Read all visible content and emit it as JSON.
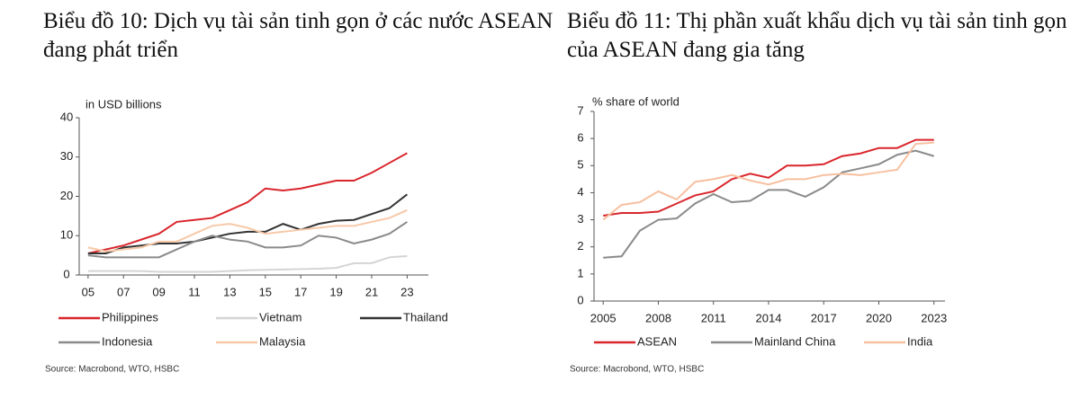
{
  "chart_data": [
    {
      "type": "line",
      "title": "Biểu đồ 10: Dịch vụ tài sản tinh gọn ở các nước ASEAN đang phát triển",
      "y_label": "in USD billions",
      "source": "Source: Macrobond, WTO, HSBC",
      "x": [
        2005,
        2006,
        2007,
        2008,
        2009,
        2010,
        2011,
        2012,
        2013,
        2014,
        2015,
        2016,
        2017,
        2018,
        2019,
        2020,
        2021,
        2022,
        2023
      ],
      "xlim": [
        2004.5,
        2024.2
      ],
      "xticks": [
        {
          "value": 2005,
          "label": "05"
        },
        {
          "value": 2007,
          "label": "07"
        },
        {
          "value": 2009,
          "label": "09"
        },
        {
          "value": 2011,
          "label": "11"
        },
        {
          "value": 2013,
          "label": "13"
        },
        {
          "value": 2015,
          "label": "15"
        },
        {
          "value": 2017,
          "label": "17"
        },
        {
          "value": 2019,
          "label": "19"
        },
        {
          "value": 2021,
          "label": "21"
        },
        {
          "value": 2023,
          "label": "23"
        }
      ],
      "ylim": [
        0,
        40
      ],
      "yticks": [
        0,
        10,
        20,
        30,
        40
      ],
      "series": [
        {
          "name": "Philippines",
          "color": "#d9262c",
          "values": [
            5.5,
            6.5,
            7.5,
            9,
            10.5,
            13.5,
            14,
            14.5,
            16.5,
            18.5,
            22,
            21.5,
            22,
            23,
            24,
            24,
            26,
            28.5,
            31
          ]
        },
        {
          "name": "Vietnam",
          "color": "#d4d4d4",
          "values": [
            1,
            1,
            1,
            1,
            0.8,
            0.8,
            0.8,
            0.8,
            1,
            1.2,
            1.3,
            1.4,
            1.5,
            1.6,
            1.8,
            3,
            3,
            4.5,
            4.8
          ]
        },
        {
          "name": "Thailand",
          "color": "#333333",
          "values": [
            5.5,
            5.5,
            7,
            7.5,
            8,
            8,
            8.5,
            9.5,
            10.5,
            11,
            11,
            13,
            11.5,
            13,
            13.8,
            14,
            15.5,
            17,
            20.5
          ]
        },
        {
          "name": "Indonesia",
          "color": "#8a8a8a",
          "values": [
            5,
            4.5,
            4.5,
            4.5,
            4.5,
            6.5,
            8.5,
            10,
            9,
            8.5,
            7,
            7,
            7.5,
            10,
            9.5,
            8,
            9,
            10.5,
            13.5
          ]
        },
        {
          "name": "Malaysia",
          "color": "#f7c9a8",
          "values": [
            7,
            6,
            6.5,
            7,
            8.5,
            8.5,
            10.5,
            12.5,
            13,
            12,
            10.5,
            11,
            11.5,
            12,
            12.5,
            12.5,
            13.5,
            14.5,
            16.5
          ]
        }
      ]
    },
    {
      "type": "line",
      "title": "Biểu đồ 11: Thị phần xuất khẩu dịch vụ tài sản tinh gọn của ASEAN đang gia tăng",
      "y_label": "% share of world",
      "source": "Source: Macrobond, WTO, HSBC",
      "x": [
        2005,
        2006,
        2007,
        2008,
        2009,
        2010,
        2011,
        2012,
        2013,
        2014,
        2015,
        2016,
        2017,
        2018,
        2019,
        2020,
        2021,
        2022,
        2023
      ],
      "xlim": [
        2004.5,
        2023.6
      ],
      "xticks": [
        2005,
        2008,
        2011,
        2014,
        2017,
        2020,
        2023
      ],
      "ylim": [
        0,
        7
      ],
      "yticks": [
        0,
        1,
        2,
        3,
        4,
        5,
        6,
        7
      ],
      "series": [
        {
          "name": "ASEAN",
          "color": "#d9262c",
          "values": [
            3.15,
            3.25,
            3.25,
            3.3,
            3.6,
            3.9,
            4.05,
            4.5,
            4.7,
            4.55,
            5.0,
            5.0,
            5.05,
            5.35,
            5.45,
            5.65,
            5.65,
            5.95,
            5.95
          ]
        },
        {
          "name": "Mainland China",
          "color": "#8a8a8a",
          "values": [
            1.6,
            1.65,
            2.6,
            3.0,
            3.05,
            3.6,
            3.95,
            3.65,
            3.7,
            4.1,
            4.1,
            3.85,
            4.2,
            4.75,
            4.9,
            5.05,
            5.4,
            5.55,
            5.35
          ]
        },
        {
          "name": "India",
          "color": "#f7c0a0",
          "values": [
            3.0,
            3.55,
            3.65,
            4.05,
            3.75,
            4.4,
            4.5,
            4.65,
            4.45,
            4.3,
            4.5,
            4.5,
            4.65,
            4.7,
            4.65,
            4.75,
            4.85,
            5.8,
            5.85
          ]
        }
      ]
    }
  ]
}
